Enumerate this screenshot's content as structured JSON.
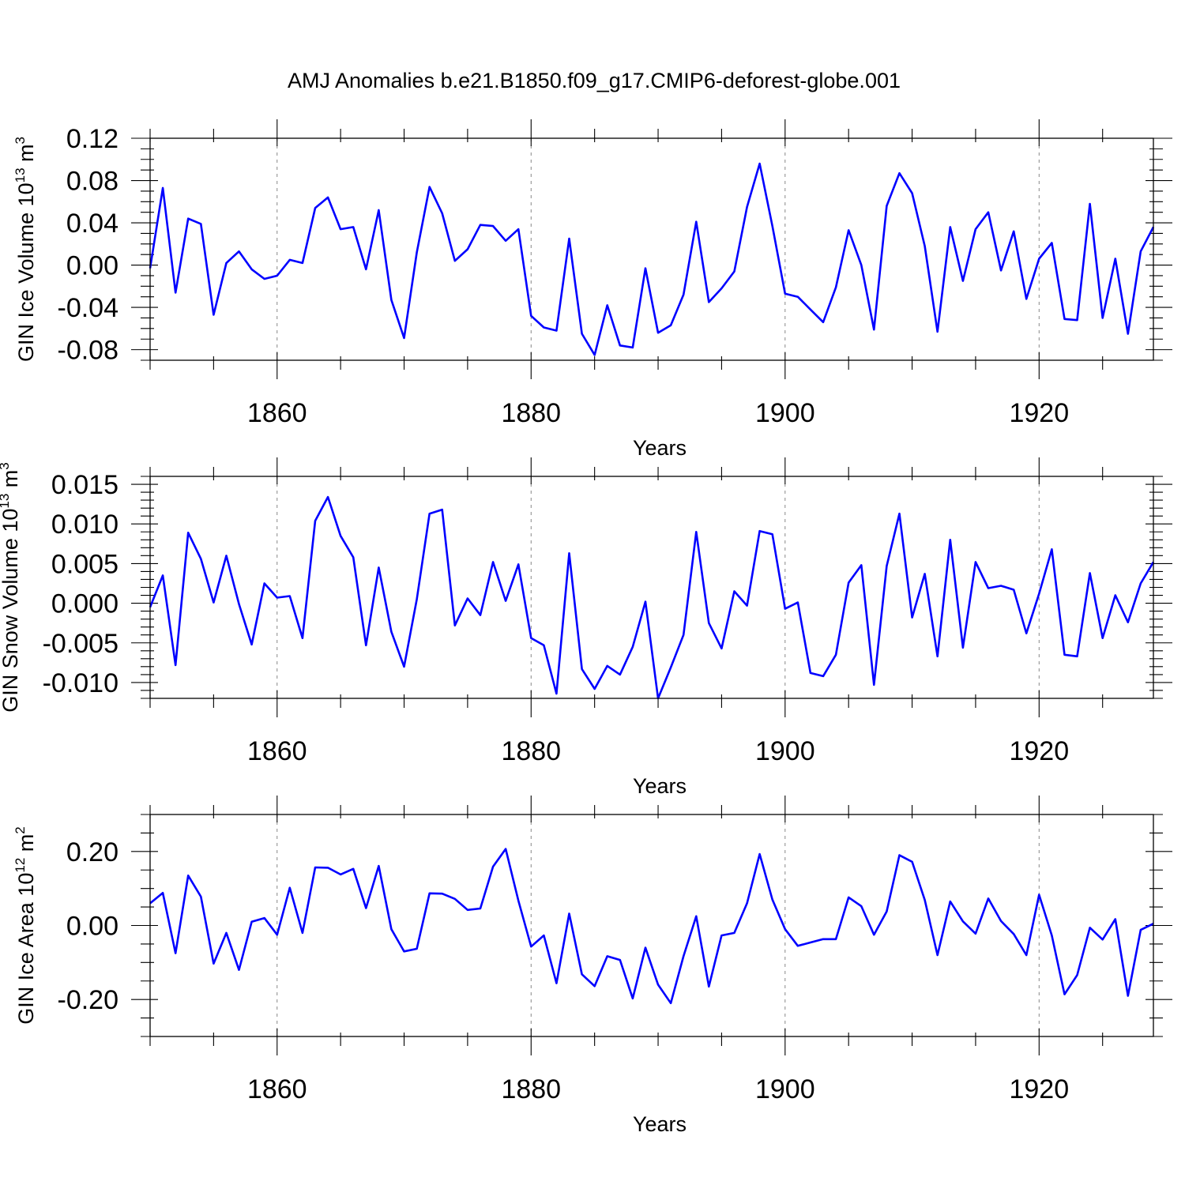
{
  "figure_title": "AMJ Anomalies b.e21.B1850.f09_g17.CMIP6-deforest-globe.001",
  "line_color": "#0000ff",
  "chart_data": [
    {
      "type": "line",
      "ylabel": "GIN Ice Volume 10",
      "ylabel_exponent": "13",
      "ylabel_unit": " m",
      "ylabel_unit_exponent": "3",
      "xlabel": "Years",
      "xlim": [
        1850,
        1929
      ],
      "ylim": [
        -0.09,
        0.12
      ],
      "xticks": [
        1860,
        1880,
        1900,
        1920
      ],
      "xtick_labels": [
        "1860",
        "1880",
        "1900",
        "1920"
      ],
      "yticks": [
        -0.08,
        -0.04,
        0.0,
        0.04,
        0.08,
        0.12
      ],
      "ytick_labels": [
        "-0.08",
        "-0.04",
        "0.00",
        "0.04",
        "0.08",
        "0.12"
      ],
      "yminor_step": 0.01,
      "grid": "dashed vertical at major x ticks",
      "x": [
        1850,
        1851,
        1852,
        1853,
        1854,
        1855,
        1856,
        1857,
        1858,
        1859,
        1860,
        1861,
        1862,
        1863,
        1864,
        1865,
        1866,
        1867,
        1868,
        1869,
        1870,
        1871,
        1872,
        1873,
        1874,
        1875,
        1876,
        1877,
        1878,
        1879,
        1880,
        1881,
        1882,
        1883,
        1884,
        1885,
        1886,
        1887,
        1888,
        1889,
        1890,
        1891,
        1892,
        1893,
        1894,
        1895,
        1896,
        1897,
        1898,
        1899,
        1900,
        1901,
        1902,
        1903,
        1904,
        1905,
        1906,
        1907,
        1908,
        1909,
        1910,
        1911,
        1912,
        1913,
        1914,
        1915,
        1916,
        1917,
        1918,
        1919,
        1920,
        1921,
        1922,
        1923,
        1924,
        1925,
        1926,
        1927,
        1928,
        1929
      ],
      "values": [
        -0.003,
        0.073,
        -0.026,
        0.044,
        0.039,
        -0.047,
        0.002,
        0.013,
        -0.004,
        -0.013,
        -0.01,
        0.005,
        0.002,
        0.054,
        0.064,
        0.034,
        0.036,
        -0.004,
        0.052,
        -0.033,
        -0.069,
        0.012,
        0.074,
        0.049,
        0.004,
        0.015,
        0.038,
        0.037,
        0.023,
        0.034,
        -0.048,
        -0.059,
        -0.062,
        0.025,
        -0.065,
        -0.085,
        -0.038,
        -0.076,
        -0.078,
        -0.003,
        -0.064,
        -0.057,
        -0.028,
        0.041,
        -0.035,
        -0.022,
        -0.006,
        0.055,
        0.096,
        0.037,
        -0.027,
        -0.03,
        -0.042,
        -0.054,
        -0.021,
        0.033,
        0.0,
        -0.061,
        0.056,
        0.087,
        0.068,
        0.018,
        -0.063,
        0.036,
        -0.015,
        0.034,
        0.05,
        -0.005,
        0.032,
        -0.032,
        0.006,
        0.021,
        -0.051,
        -0.052,
        0.058,
        -0.05,
        0.006,
        -0.065,
        0.013,
        0.036
      ]
    },
    {
      "type": "line",
      "ylabel": "GIN Snow Volume 10",
      "ylabel_exponent": "13",
      "ylabel_unit": " m",
      "ylabel_unit_exponent": "3",
      "xlabel": "Years",
      "xlim": [
        1850,
        1929
      ],
      "ylim": [
        -0.012,
        0.016
      ],
      "xticks": [
        1860,
        1880,
        1900,
        1920
      ],
      "xtick_labels": [
        "1860",
        "1880",
        "1900",
        "1920"
      ],
      "yticks": [
        -0.01,
        -0.005,
        0.0,
        0.005,
        0.01,
        0.015
      ],
      "ytick_labels": [
        "-0.010",
        "-0.005",
        "0.000",
        "0.005",
        "0.010",
        "0.015"
      ],
      "yminor_step": 0.001,
      "grid": "dashed vertical at major x ticks",
      "x": [
        1850,
        1851,
        1852,
        1853,
        1854,
        1855,
        1856,
        1857,
        1858,
        1859,
        1860,
        1861,
        1862,
        1863,
        1864,
        1865,
        1866,
        1867,
        1868,
        1869,
        1870,
        1871,
        1872,
        1873,
        1874,
        1875,
        1876,
        1877,
        1878,
        1879,
        1880,
        1881,
        1882,
        1883,
        1884,
        1885,
        1886,
        1887,
        1888,
        1889,
        1890,
        1891,
        1892,
        1893,
        1894,
        1895,
        1896,
        1897,
        1898,
        1899,
        1900,
        1901,
        1902,
        1903,
        1904,
        1905,
        1906,
        1907,
        1908,
        1909,
        1910,
        1911,
        1912,
        1913,
        1914,
        1915,
        1916,
        1917,
        1918,
        1919,
        1920,
        1921,
        1922,
        1923,
        1924,
        1925,
        1926,
        1927,
        1928,
        1929
      ],
      "values": [
        -0.0005,
        0.0035,
        -0.0078,
        0.0089,
        0.0056,
        0.0001,
        0.006,
        -0.0001,
        -0.0052,
        0.0025,
        0.0007,
        0.0009,
        -0.0044,
        0.0104,
        0.0134,
        0.0085,
        0.0058,
        -0.0053,
        0.0045,
        -0.0036,
        -0.008,
        0.0005,
        0.0113,
        0.0118,
        -0.0028,
        0.0006,
        -0.0015,
        0.0052,
        0.0003,
        0.0049,
        -0.0044,
        -0.0053,
        -0.0114,
        0.0063,
        -0.0083,
        -0.0108,
        -0.0079,
        -0.009,
        -0.0055,
        0.0002,
        -0.012,
        -0.0081,
        -0.004,
        0.009,
        -0.0025,
        -0.0057,
        0.0015,
        -0.0003,
        0.0091,
        0.0087,
        -0.0007,
        0.0001,
        -0.0088,
        -0.0092,
        -0.0065,
        0.0026,
        0.0048,
        -0.0103,
        0.0047,
        0.0113,
        -0.0018,
        0.0037,
        -0.0067,
        0.008,
        -0.0056,
        0.0052,
        0.0019,
        0.0022,
        0.0017,
        -0.0038,
        0.0012,
        0.0068,
        -0.0065,
        -0.0067,
        0.0038,
        -0.0044,
        0.001,
        -0.0024,
        0.0025,
        0.0052
      ]
    },
    {
      "type": "line",
      "ylabel": "GIN Ice Area 10",
      "ylabel_exponent": "12",
      "ylabel_unit": " m",
      "ylabel_unit_exponent": "2",
      "xlabel": "Years",
      "xlim": [
        1850,
        1929
      ],
      "ylim": [
        -0.3,
        0.3
      ],
      "xticks": [
        1860,
        1880,
        1900,
        1920
      ],
      "xtick_labels": [
        "1860",
        "1880",
        "1900",
        "1920"
      ],
      "yticks": [
        -0.2,
        0.0,
        0.2
      ],
      "ytick_labels": [
        "-0.20",
        "0.00",
        "0.20"
      ],
      "yminor_step": 0.05,
      "grid": "dashed vertical at major x ticks",
      "x": [
        1850,
        1851,
        1852,
        1853,
        1854,
        1855,
        1856,
        1857,
        1858,
        1859,
        1860,
        1861,
        1862,
        1863,
        1864,
        1865,
        1866,
        1867,
        1868,
        1869,
        1870,
        1871,
        1872,
        1873,
        1874,
        1875,
        1876,
        1877,
        1878,
        1879,
        1880,
        1881,
        1882,
        1883,
        1884,
        1885,
        1886,
        1887,
        1888,
        1889,
        1890,
        1891,
        1892,
        1893,
        1894,
        1895,
        1896,
        1897,
        1898,
        1899,
        1900,
        1901,
        1902,
        1903,
        1904,
        1905,
        1906,
        1907,
        1908,
        1909,
        1910,
        1911,
        1912,
        1913,
        1914,
        1915,
        1916,
        1917,
        1918,
        1919,
        1920,
        1921,
        1922,
        1923,
        1924,
        1925,
        1926,
        1927,
        1928,
        1929
      ],
      "values": [
        0.06,
        0.088,
        -0.075,
        0.135,
        0.078,
        -0.103,
        -0.02,
        -0.12,
        0.01,
        0.02,
        -0.025,
        0.102,
        -0.02,
        0.157,
        0.156,
        0.138,
        0.153,
        0.047,
        0.161,
        -0.01,
        -0.07,
        -0.063,
        0.087,
        0.086,
        0.072,
        0.042,
        0.046,
        0.159,
        0.207,
        0.067,
        -0.057,
        -0.027,
        -0.156,
        0.032,
        -0.132,
        -0.164,
        -0.083,
        -0.093,
        -0.197,
        -0.06,
        -0.16,
        -0.21,
        -0.083,
        0.025,
        -0.165,
        -0.027,
        -0.02,
        0.06,
        0.193,
        0.07,
        -0.01,
        -0.055,
        -0.046,
        -0.037,
        -0.037,
        0.076,
        0.052,
        -0.025,
        0.038,
        0.19,
        0.172,
        0.069,
        -0.08,
        0.065,
        0.011,
        -0.022,
        0.073,
        0.012,
        -0.023,
        -0.08,
        0.083,
        -0.027,
        -0.186,
        -0.134,
        -0.006,
        -0.038,
        0.017,
        -0.19,
        -0.012,
        0.005
      ]
    }
  ]
}
